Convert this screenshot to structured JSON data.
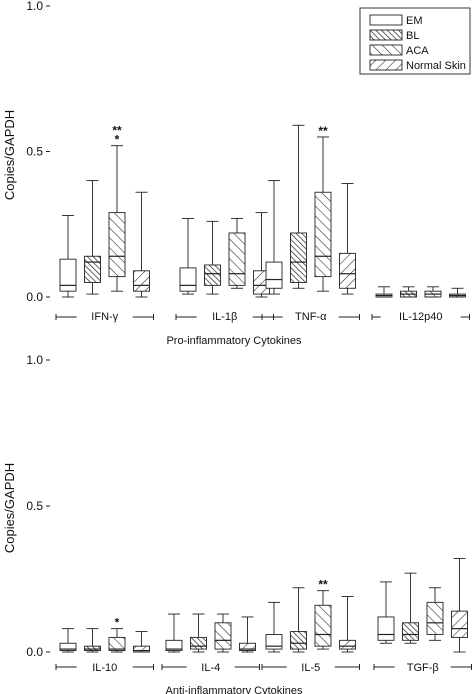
{
  "chart_data": [
    {
      "type": "box",
      "ylabel": "Copies/GAPDH",
      "xlabel": "Pro-inflammatory Cytokines",
      "ylim": [
        0,
        1.0
      ],
      "yticks": [
        "0.0",
        "0.5",
        "1.0"
      ],
      "categories": [
        "IFN-γ",
        "IL-1β",
        "TNF-α",
        "IL-12p40"
      ],
      "legend": {
        "position": "top-right",
        "entries": [
          {
            "label": "EM",
            "hatch": "none"
          },
          {
            "label": "BL",
            "hatch": "backslash-dense"
          },
          {
            "label": "ACA",
            "hatch": "backslash"
          },
          {
            "label": "Normal Skin",
            "hatch": "slash"
          }
        ]
      },
      "series": [
        {
          "name": "EM",
          "boxes": [
            {
              "min": 0.0,
              "q1": 0.02,
              "median": 0.04,
              "q3": 0.13,
              "max": 0.28
            },
            {
              "min": 0.01,
              "q1": 0.02,
              "median": 0.04,
              "q3": 0.1,
              "max": 0.27
            },
            {
              "min": 0.01,
              "q1": 0.03,
              "median": 0.06,
              "q3": 0.12,
              "max": 0.4
            },
            {
              "min": 0.0,
              "q1": 0.0,
              "median": 0.005,
              "q3": 0.01,
              "max": 0.035
            }
          ]
        },
        {
          "name": "BL",
          "boxes": [
            {
              "min": 0.01,
              "q1": 0.05,
              "median": 0.12,
              "q3": 0.14,
              "max": 0.4
            },
            {
              "min": 0.01,
              "q1": 0.04,
              "median": 0.08,
              "q3": 0.11,
              "max": 0.26
            },
            {
              "min": 0.03,
              "q1": 0.05,
              "median": 0.12,
              "q3": 0.22,
              "max": 0.59
            },
            {
              "min": 0.0,
              "q1": 0.0,
              "median": 0.01,
              "q3": 0.02,
              "max": 0.035
            }
          ]
        },
        {
          "name": "ACA",
          "boxes": [
            {
              "min": 0.02,
              "q1": 0.07,
              "median": 0.14,
              "q3": 0.29,
              "max": 0.52
            },
            {
              "min": 0.03,
              "q1": 0.04,
              "median": 0.08,
              "q3": 0.22,
              "max": 0.27
            },
            {
              "min": 0.02,
              "q1": 0.07,
              "median": 0.14,
              "q3": 0.36,
              "max": 0.55
            },
            {
              "min": 0.0,
              "q1": 0.0,
              "median": 0.01,
              "q3": 0.02,
              "max": 0.035
            }
          ]
        },
        {
          "name": "Normal Skin",
          "boxes": [
            {
              "min": 0.0,
              "q1": 0.02,
              "median": 0.04,
              "q3": 0.09,
              "max": 0.36
            },
            {
              "min": 0.0,
              "q1": 0.01,
              "median": 0.04,
              "q3": 0.09,
              "max": 0.29
            },
            {
              "min": 0.01,
              "q1": 0.03,
              "median": 0.08,
              "q3": 0.15,
              "max": 0.39
            },
            {
              "min": 0.0,
              "q1": 0.0,
              "median": 0.005,
              "q3": 0.01,
              "max": 0.03
            }
          ]
        }
      ],
      "annotations": [
        {
          "category": "IFN-γ",
          "series": "ACA",
          "text": "**"
        },
        {
          "category": "IFN-γ",
          "series": "ACA",
          "text": "*"
        },
        {
          "category": "TNF-α",
          "series": "ACA",
          "text": "**"
        }
      ]
    },
    {
      "type": "box",
      "ylabel": "Copies/GAPDH",
      "xlabel": "Anti-inflammatory Cytokines",
      "ylim": [
        0,
        1.0
      ],
      "yticks": [
        "0.0",
        "0.5",
        "1.0"
      ],
      "categories": [
        "IL-10",
        "IL-4",
        "IL-5",
        "TGF-β"
      ],
      "series": [
        {
          "name": "EM",
          "boxes": [
            {
              "min": 0.0,
              "q1": 0.005,
              "median": 0.01,
              "q3": 0.03,
              "max": 0.08
            },
            {
              "min": 0.0,
              "q1": 0.005,
              "median": 0.01,
              "q3": 0.04,
              "max": 0.13
            },
            {
              "min": 0.0,
              "q1": 0.01,
              "median": 0.02,
              "q3": 0.06,
              "max": 0.17
            },
            {
              "min": 0.03,
              "q1": 0.04,
              "median": 0.06,
              "q3": 0.12,
              "max": 0.24
            }
          ]
        },
        {
          "name": "BL",
          "boxes": [
            {
              "min": 0.0,
              "q1": 0.005,
              "median": 0.01,
              "q3": 0.02,
              "max": 0.08
            },
            {
              "min": 0.0,
              "q1": 0.01,
              "median": 0.02,
              "q3": 0.05,
              "max": 0.13
            },
            {
              "min": 0.0,
              "q1": 0.01,
              "median": 0.03,
              "q3": 0.07,
              "max": 0.22
            },
            {
              "min": 0.03,
              "q1": 0.04,
              "median": 0.06,
              "q3": 0.1,
              "max": 0.27
            }
          ]
        },
        {
          "name": "ACA",
          "boxes": [
            {
              "min": 0.0,
              "q1": 0.005,
              "median": 0.01,
              "q3": 0.05,
              "max": 0.08
            },
            {
              "min": 0.0,
              "q1": 0.01,
              "median": 0.04,
              "q3": 0.1,
              "max": 0.13
            },
            {
              "min": 0.01,
              "q1": 0.02,
              "median": 0.06,
              "q3": 0.16,
              "max": 0.21
            },
            {
              "min": 0.04,
              "q1": 0.06,
              "median": 0.1,
              "q3": 0.17,
              "max": 0.22
            }
          ]
        },
        {
          "name": "Normal Skin",
          "boxes": [
            {
              "min": 0.0,
              "q1": 0.0,
              "median": 0.005,
              "q3": 0.02,
              "max": 0.07
            },
            {
              "min": 0.0,
              "q1": 0.005,
              "median": 0.01,
              "q3": 0.03,
              "max": 0.12
            },
            {
              "min": 0.0,
              "q1": 0.01,
              "median": 0.02,
              "q3": 0.04,
              "max": 0.19
            },
            {
              "min": 0.0,
              "q1": 0.05,
              "median": 0.08,
              "q3": 0.14,
              "max": 0.32
            }
          ]
        }
      ],
      "annotations": [
        {
          "category": "IL-10",
          "series": "ACA",
          "text": "*"
        },
        {
          "category": "IL-5",
          "series": "ACA",
          "text": "**"
        }
      ]
    }
  ],
  "style": {
    "ink": "#222222",
    "box_fill": "#ffffff"
  }
}
